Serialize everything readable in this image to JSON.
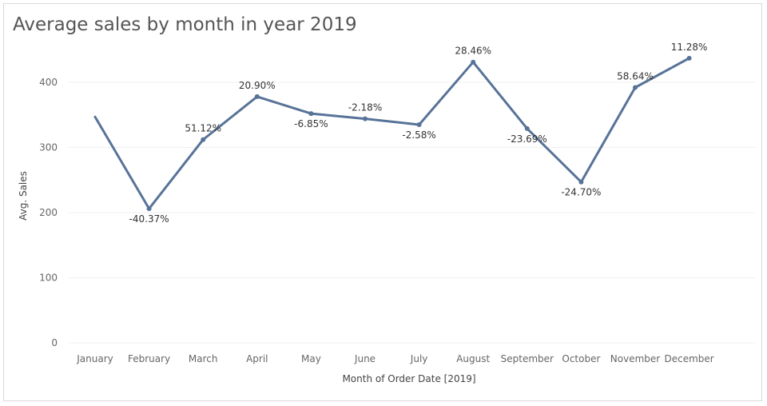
{
  "chart_data": {
    "type": "line",
    "title": "Average sales by month in year 2019",
    "xlabel": "Month of Order Date [2019]",
    "ylabel": "Avg. Sales",
    "ylim": [
      0,
      450
    ],
    "yticks": [
      0,
      100,
      200,
      300,
      400
    ],
    "grid": true,
    "categories": [
      "January",
      "February",
      "March",
      "April",
      "May",
      "June",
      "July",
      "August",
      "September",
      "October",
      "November",
      "December"
    ],
    "values": [
      347,
      206,
      312,
      378,
      352,
      344,
      335,
      431,
      329,
      247,
      392,
      437
    ],
    "labels": [
      "",
      "-40.37%",
      "51.12%",
      "20.90%",
      "-6.85%",
      "-2.18%",
      "-2.58%",
      "28.46%",
      "-23.69%",
      "-24.70%",
      "58.64%",
      "11.28%"
    ],
    "label_positions": [
      "",
      "below",
      "above",
      "above",
      "below",
      "above",
      "below",
      "above",
      "below",
      "below",
      "above",
      "above"
    ],
    "line_color": "#587398",
    "grid_color": "#efefef"
  }
}
